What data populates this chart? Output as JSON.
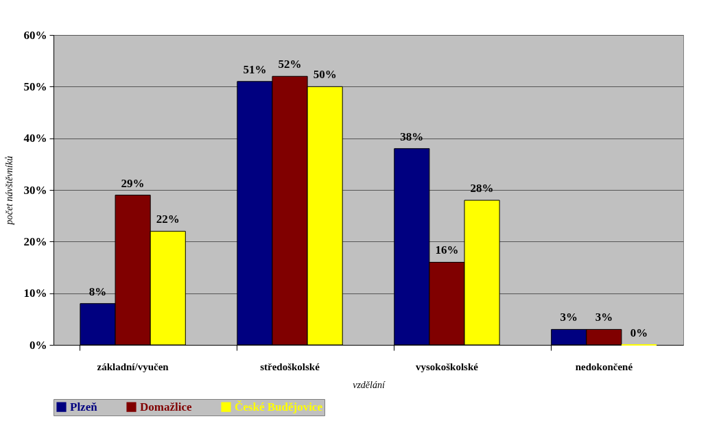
{
  "chart_data": {
    "type": "bar",
    "xlabel": "vzdělání",
    "ylabel": "počet návštěvníků",
    "categories": [
      "základní/vyučen",
      "středoškolské",
      "vysokoškolské",
      "nedokončené"
    ],
    "series": [
      {
        "name": "Plzeň",
        "color": "#000080",
        "values": [
          8,
          51,
          38,
          3
        ],
        "value_labels": [
          "8%",
          "51%",
          "38%",
          "3%"
        ]
      },
      {
        "name": "Domažlice",
        "color": "#800000",
        "values": [
          29,
          52,
          16,
          3
        ],
        "value_labels": [
          "29%",
          "52%",
          "16%",
          "3%"
        ]
      },
      {
        "name": "České Budějovice",
        "color": "#ffff00",
        "values": [
          22,
          50,
          28,
          0
        ],
        "value_labels": [
          "22%",
          "50%",
          "28%",
          "0%"
        ]
      }
    ],
    "ylim": [
      0,
      60
    ],
    "yticks": [
      {
        "value": 0,
        "label": "0%"
      },
      {
        "value": 10,
        "label": "10%"
      },
      {
        "value": 20,
        "label": "20%"
      },
      {
        "value": 30,
        "label": "30%"
      },
      {
        "value": 40,
        "label": "40%"
      },
      {
        "value": 50,
        "label": "50%"
      },
      {
        "value": 60,
        "label": "60%"
      }
    ],
    "grid": "y",
    "legend": "bottom"
  }
}
